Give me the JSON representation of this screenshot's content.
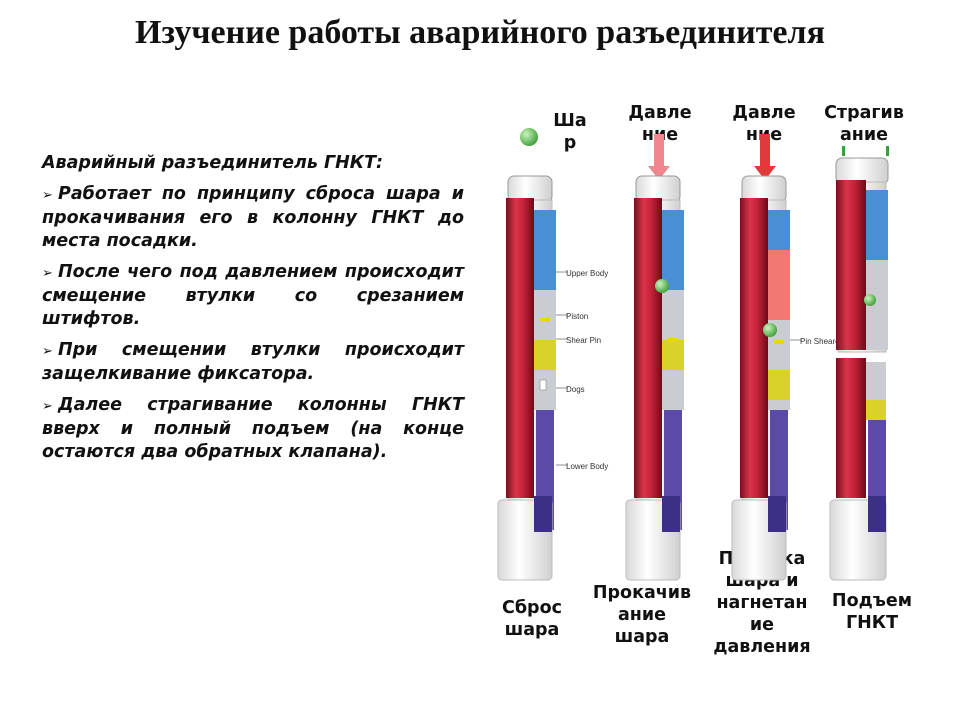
{
  "title": "Изучение работы аварийного разъединителя",
  "text": {
    "heading": "Аварийный разъединитель ГНКТ:",
    "bullet_marker": "➢",
    "bullets": [
      "Работает по принципу сброса шара и прокачивания его в колонну ГНКТ до места посадки.",
      "После чего под давлением происходит смещение втулки со срезанием штифтов.",
      "При смещении втулки происходит защелкивание фиксатора.",
      "Далее страгивание колонны ГНКТ вверх и полный подъем (на конце остаются два обратных клапана)."
    ]
  },
  "diagram": {
    "top_labels": {
      "ball": "Ша р",
      "pressure_1": "Давле ние",
      "pressure_2": "Давле ние",
      "pull": "Страгив ание"
    },
    "part_labels": {
      "upper_body": "Upper Body",
      "piston": "Piston",
      "shear_pin": "Shear Pin",
      "dogs": "Dogs",
      "lower_body": "Lower Body",
      "pin_sheared": "Pin Sheared"
    },
    "bottom_labels": {
      "drop": "Сброс шара",
      "pump": "Прокачив ание шара",
      "seat": "Посадка шара и нагнетан ие давления",
      "lift": "Подъем ГНКТ"
    },
    "colors": {
      "body_red": "#c8233a",
      "inner_blue": "#4a8fd6",
      "sleeve_gray": "#c9ccd0",
      "dogs_yellow": "#d8d22a",
      "lower_purple": "#5b4aa8",
      "ball_green": "#6ccf5c",
      "arrow_pink": "#f0868e",
      "arrow_red": "#e03a3a"
    }
  }
}
